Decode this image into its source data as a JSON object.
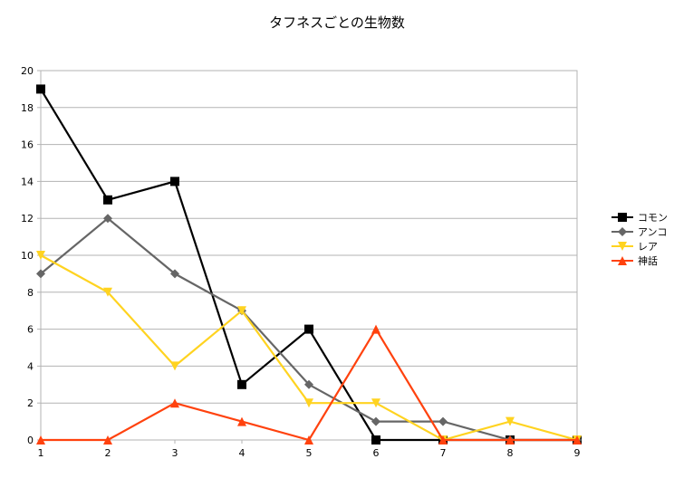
{
  "chart_data": {
    "type": "line",
    "title": "タフネスごとの生物数",
    "xlabel": "",
    "ylabel": "",
    "x": [
      1,
      2,
      3,
      4,
      5,
      6,
      7,
      8,
      9
    ],
    "xlim": [
      1,
      9
    ],
    "ylim": [
      0,
      20
    ],
    "yticks": [
      0,
      2,
      4,
      6,
      8,
      10,
      12,
      14,
      16,
      18,
      20
    ],
    "grid": true,
    "legend": "right",
    "series": [
      {
        "name": "コモン",
        "color": "#000000",
        "marker": "square",
        "values": [
          19,
          13,
          14,
          3,
          6,
          0,
          0,
          0,
          0
        ]
      },
      {
        "name": "アンコ",
        "color": "#666666",
        "marker": "diamond",
        "values": [
          9,
          12,
          9,
          7,
          3,
          1,
          1,
          0,
          0
        ]
      },
      {
        "name": "レア",
        "color": "#ffd320",
        "marker": "triangle-down",
        "values": [
          10,
          8,
          4,
          7,
          2,
          2,
          0,
          1,
          0
        ]
      },
      {
        "name": "神話",
        "color": "#ff420e",
        "marker": "triangle-up",
        "values": [
          0,
          0,
          2,
          1,
          0,
          6,
          0,
          0,
          0
        ]
      }
    ]
  }
}
